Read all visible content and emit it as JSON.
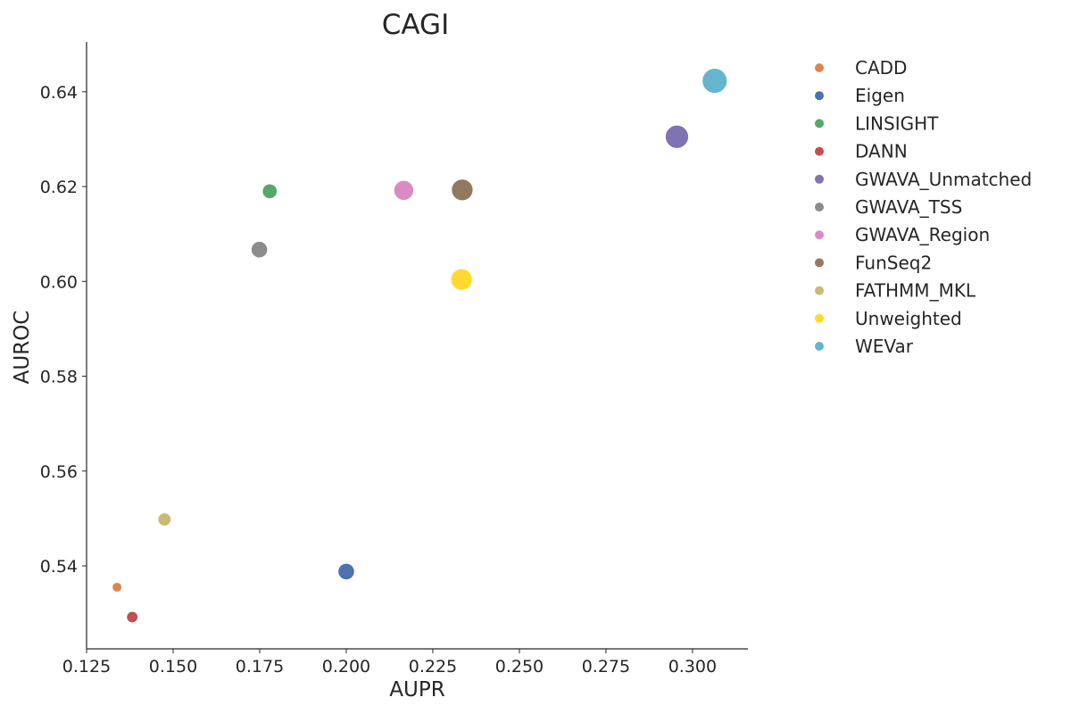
{
  "chart_data": {
    "type": "scatter",
    "title": "CAGI",
    "xlabel": "AUPR",
    "ylabel": "AUROC",
    "xlim": [
      0.125,
      0.316
    ],
    "ylim": [
      0.5225,
      0.6505
    ],
    "xticks": [
      0.125,
      0.15,
      0.175,
      0.2,
      0.225,
      0.25,
      0.275,
      0.3
    ],
    "xtick_labels": [
      "0.125",
      "0.150",
      "0.175",
      "0.200",
      "0.225",
      "0.250",
      "0.275",
      "0.300"
    ],
    "yticks": [
      0.54,
      0.56,
      0.58,
      0.6,
      0.62,
      0.64
    ],
    "ytick_labels": [
      "0.54",
      "0.56",
      "0.58",
      "0.60",
      "0.62",
      "0.64"
    ],
    "grid": false,
    "legend_position": "right-outside",
    "series": [
      {
        "name": "CADD",
        "x": 0.1338,
        "y": 0.5355,
        "rank": 1,
        "color": "#dd8452"
      },
      {
        "name": "Eigen",
        "x": 0.2,
        "y": 0.5388,
        "rank": 5,
        "color": "#4c72b0"
      },
      {
        "name": "LINSIGHT",
        "x": 0.1779,
        "y": 0.619,
        "rank": 4,
        "color": "#55a868"
      },
      {
        "name": "DANN",
        "x": 0.1382,
        "y": 0.5292,
        "rank": 2,
        "color": "#c44e52"
      },
      {
        "name": "GWAVA_Unmatched",
        "x": 0.2955,
        "y": 0.6305,
        "rank": 9,
        "color": "#8172b3"
      },
      {
        "name": "GWAVA_TSS",
        "x": 0.1749,
        "y": 0.6067,
        "rank": 5,
        "color": "#8c8c8c"
      },
      {
        "name": "GWAVA_Region",
        "x": 0.2166,
        "y": 0.6192,
        "rank": 7,
        "color": "#da8bc3"
      },
      {
        "name": "FunSeq2",
        "x": 0.2335,
        "y": 0.6193,
        "rank": 8,
        "color": "#937860"
      },
      {
        "name": "FATHMM_MKL",
        "x": 0.1475,
        "y": 0.5498,
        "rank": 3,
        "color": "#ccb974"
      },
      {
        "name": "Unweighted",
        "x": 0.2333,
        "y": 0.6004,
        "rank": 8,
        "color": "#ffd92f"
      },
      {
        "name": "WEVar",
        "x": 0.3064,
        "y": 0.6423,
        "rank": 10,
        "color": "#64b5cd"
      }
    ]
  }
}
